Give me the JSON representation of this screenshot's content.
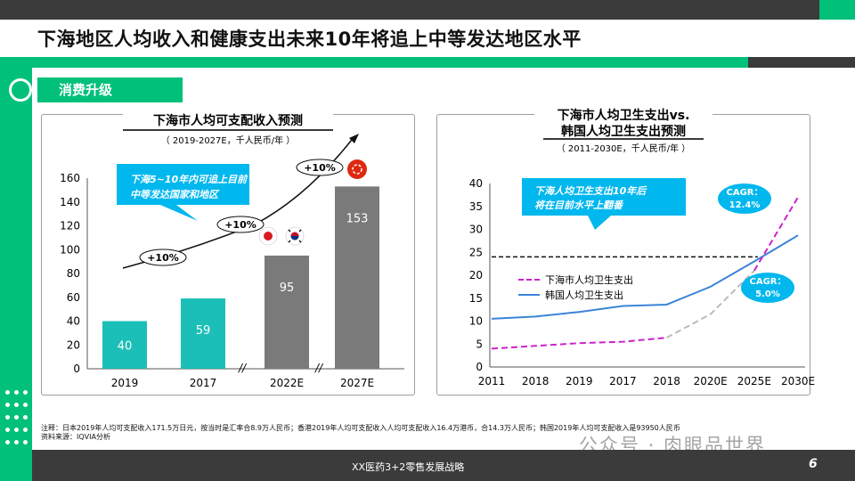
{
  "slide": {
    "title": "下海地区人均收入和健康支出未来10年将追上中等发达地区水平",
    "section_tab": "消费升级",
    "footnote_line1": "注释：日本2019年人均可支配收入171.5万日元，按当时是汇率合8.9万人民币；香港2019年人均可支配收入人均可支配收入16.4万港币，合14.3万人民币；韩国2019年人均可支配收入是93950人民币",
    "footnote_line2": "资料来源：IQVIA分析",
    "footer_text": "XX医药3+2零售发展战略",
    "page_number": "6",
    "watermark": "公众号 · 肉眼品世界"
  },
  "colors": {
    "accent": "#00c07a",
    "dark": "#3b3b3b",
    "teal_bar": "#1bbfb7",
    "gray_bar": "#7a7a7a",
    "cyan_callout": "#00b7ee",
    "magenta": "#cc22cc",
    "blue_line": "#3b84d9"
  },
  "left_chart": {
    "title": "下海市人均可支配收入预测",
    "subtitle": "（ 2019-2027E，千人民币/年 ）",
    "callout_line1": "下海5~10年内可追上目前",
    "callout_line2": "中等发达国家和地区",
    "growth_labels": [
      "+10%",
      "+10%",
      "+10%"
    ],
    "flag_icons": [
      "japan-flag-icon",
      "korea-flag-icon",
      "hongkong-flag-icon"
    ]
  },
  "right_chart": {
    "title_line1": "下海市人均卫生支出vs.",
    "title_line2": "韩国人均卫生支出预测",
    "subtitle": "（ 2011-2030E，千人民币/年 ）",
    "callout_line1": "下海人均卫生支出10年后",
    "callout_line2": "将在目前水平上翻番",
    "cagr_top_line1": "CAGR：",
    "cagr_top_line2": "12.4%",
    "cagr_bottom_line1": "CAGR：",
    "cagr_bottom_line2": "5.0%"
  },
  "chart_data": [
    {
      "type": "bar",
      "categories": [
        "2019",
        "2017",
        "2022E",
        "2027E"
      ],
      "values": [
        40,
        59,
        95,
        153
      ],
      "ylim": [
        0,
        160
      ],
      "yticks": [
        0,
        20,
        40,
        60,
        80,
        100,
        120,
        140,
        160
      ],
      "xlabel": "",
      "ylabel": "",
      "axis_breaks": [
        "//",
        "//"
      ],
      "grid": false
    },
    {
      "type": "line",
      "x": [
        "2011",
        "2018",
        "2019",
        "2017",
        "2018",
        "2020E",
        "2025E",
        "2030E"
      ],
      "series": [
        {
          "name": "下海市人均卫生支出",
          "values": [
            4.0,
            4.6,
            5.2,
            5.5,
            6.4,
            11.5,
            21.0,
            37.0
          ],
          "style": "dashed"
        },
        {
          "name": "韩国人均卫生支出",
          "values": [
            10.5,
            11.0,
            12.0,
            13.3,
            13.6,
            17.5,
            23.0,
            28.7
          ],
          "style": "solid"
        }
      ],
      "reference_line": 24,
      "ylim": [
        0,
        40
      ],
      "yticks": [
        0,
        5,
        10,
        15,
        20,
        25,
        30,
        35,
        40
      ],
      "legend": "center-left",
      "grid": false
    }
  ]
}
